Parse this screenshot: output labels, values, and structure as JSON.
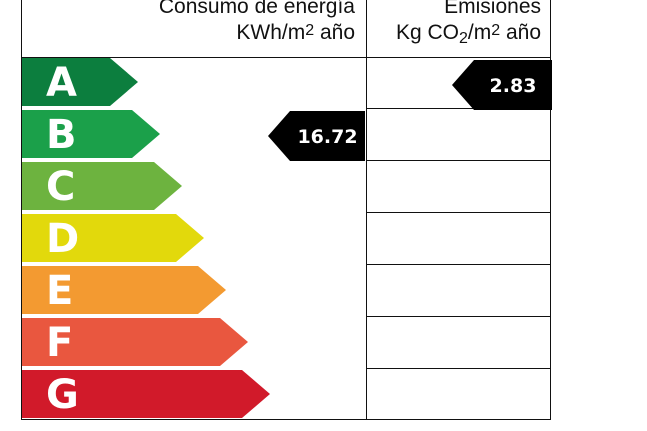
{
  "header": {
    "energy_line1": "Consumo de energía",
    "energy_unit": "KWh/m",
    "energy_unit_sup": "2",
    "energy_unit_suffix": " año",
    "emissions_line1": "Emisiones",
    "emissions_unit_prefix": "Kg CO",
    "emissions_unit_sub": "2",
    "emissions_unit_mid": "/m",
    "emissions_unit_sup": "2",
    "emissions_unit_suffix": " año"
  },
  "ratings": [
    {
      "letter": "A",
      "color": "#0c7e3e"
    },
    {
      "letter": "B",
      "color": "#1ba04a"
    },
    {
      "letter": "C",
      "color": "#6db33f"
    },
    {
      "letter": "D",
      "color": "#e2d90c"
    },
    {
      "letter": "E",
      "color": "#f39a31"
    },
    {
      "letter": "F",
      "color": "#e9573f"
    },
    {
      "letter": "G",
      "color": "#d11a2a"
    }
  ],
  "energy_value": {
    "rating": "B",
    "value": "16.72"
  },
  "emissions_value": {
    "rating": "A",
    "value": "2.83"
  }
}
